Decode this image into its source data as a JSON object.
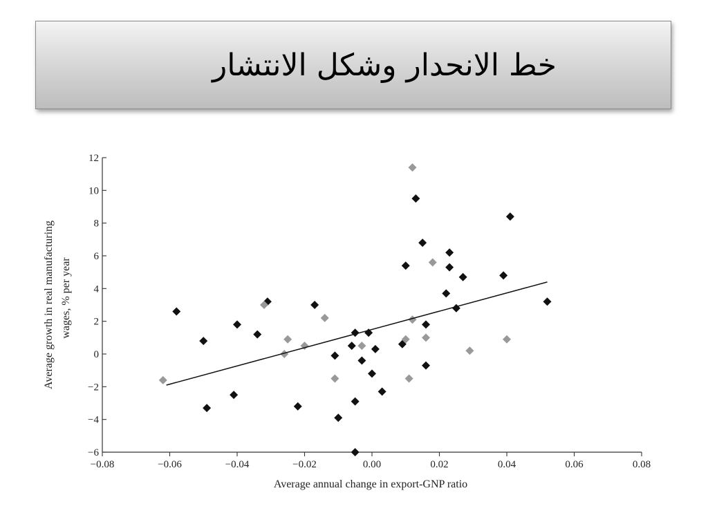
{
  "slide": {
    "title": "خط الانحدار وشكل الانتشار"
  },
  "chart_data": {
    "type": "scatter",
    "xlabel": "Average annual change in export-GNP ratio",
    "ylabel_line1": "Average growth in real manufacturing",
    "ylabel_line2": "wages, % per year",
    "xlim": [
      -0.08,
      0.08
    ],
    "ylim": [
      -6,
      12
    ],
    "x_ticks": [
      -0.08,
      -0.06,
      -0.04,
      -0.02,
      0.0,
      0.02,
      0.04,
      0.06,
      0.08
    ],
    "x_tick_labels": [
      "−0.08",
      "−0.06",
      "−0.04",
      "−0.02",
      "0.00",
      "0.02",
      "0.04",
      "0.06",
      "0.08"
    ],
    "y_ticks": [
      -6,
      -4,
      -2,
      0,
      2,
      4,
      6,
      8,
      10,
      12
    ],
    "y_tick_labels": [
      "−6",
      "−4",
      "−2",
      "0",
      "2",
      "4",
      "6",
      "8",
      "10",
      "12"
    ],
    "grid": false,
    "colors": {
      "dark": "#111111",
      "light": "#999999",
      "line": "#111111"
    },
    "series": [
      {
        "marker": "diamond",
        "color": "#111111",
        "x": [
          -0.058,
          -0.05,
          -0.049,
          -0.041,
          -0.04,
          -0.034,
          -0.031,
          -0.022,
          -0.017,
          -0.011,
          -0.01,
          -0.006,
          -0.005,
          -0.005,
          -0.005,
          -0.003,
          -0.001,
          0.0,
          0.001,
          0.003,
          0.009,
          0.01,
          0.013,
          0.015,
          0.016,
          0.016,
          0.022,
          0.023,
          0.023,
          0.025,
          0.027,
          0.039,
          0.041,
          0.052
        ],
        "y": [
          2.6,
          0.8,
          -3.3,
          -2.5,
          1.8,
          1.2,
          3.2,
          -3.2,
          3.0,
          -0.1,
          -3.9,
          0.5,
          1.3,
          -2.9,
          -6.0,
          -0.4,
          1.3,
          -1.2,
          0.3,
          -2.3,
          0.6,
          5.4,
          9.5,
          6.8,
          1.8,
          -0.7,
          3.7,
          6.2,
          5.3,
          2.8,
          4.7,
          4.8,
          8.4,
          3.2
        ]
      },
      {
        "marker": "diamond",
        "color": "#999999",
        "x": [
          -0.062,
          -0.032,
          -0.026,
          -0.025,
          -0.02,
          -0.014,
          -0.011,
          -0.003,
          0.01,
          0.011,
          0.012,
          0.012,
          0.016,
          0.018,
          0.029,
          0.04
        ],
        "y": [
          -1.6,
          3.0,
          0.0,
          0.9,
          0.5,
          2.2,
          -1.5,
          0.5,
          0.9,
          -1.5,
          11.4,
          2.1,
          1.0,
          5.6,
          0.2,
          0.9
        ]
      }
    ],
    "regression_line": {
      "x": [
        -0.061,
        0.052
      ],
      "y": [
        -1.9,
        4.4
      ]
    }
  }
}
